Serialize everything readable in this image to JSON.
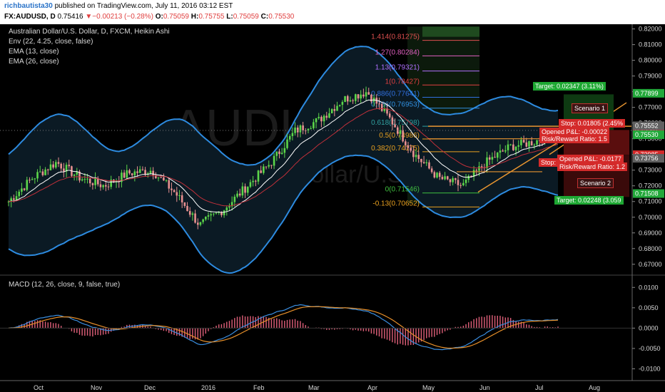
{
  "header": {
    "author": "richbautista30",
    "published": "published on TradingView.com, July 11, 2016 03:12 EST",
    "symbol": "FX:AUDUSD, D",
    "last": "0.75416",
    "change": "▼−0.00213 (−0.28%)",
    "open_label": "O:",
    "open": "0.75059",
    "high_label": "H:",
    "high": "0.75755",
    "low_label": "L:",
    "low": "0.75059",
    "close_label": "C:",
    "close": "0.75530"
  },
  "legend": {
    "title": "Australian Dollar/U.S. Dollar, D, FXCM, Heikin Ashi",
    "env": "Env (22, 4.25, close, false)",
    "ema13": "EMA (13, close)",
    "ema26": "EMA (26, close)"
  },
  "macd_legend": "MACD (12, 26, close, 9, false, true)",
  "watermark": {
    "symbol": "AUDUSD",
    "name": "Australian Dollar/U.S. Dollar"
  },
  "price_axis": [
    "0.82000",
    "0.81000",
    "0.80000",
    "0.79000",
    "0.78000",
    "0.77000",
    "0.76000",
    "0.75000",
    "0.74000",
    "0.73000",
    "0.72000",
    "0.71000",
    "0.70000",
    "0.69000",
    "0.68000",
    "0.67000"
  ],
  "price_tags": [
    {
      "label": "0.77899",
      "color": "#22a83a"
    },
    {
      "label": "0.75561",
      "color": "#d42a2a"
    },
    {
      "label": "0.75552",
      "color": "#606060"
    },
    {
      "label": "0.75530",
      "color": "#22a83a"
    },
    {
      "label": "0.73985",
      "color": "#d42a2a"
    },
    {
      "label": "0.73756",
      "color": "#606060"
    },
    {
      "label": "0.71508",
      "color": "#22a83a"
    }
  ],
  "macd_axis": [
    "0.0100",
    "0.0050",
    "0.0000",
    "-0.0050",
    "-0.0100"
  ],
  "time_axis": [
    "Oct",
    "Nov",
    "Dec",
    "2016",
    "Feb",
    "Mar",
    "Apr",
    "May",
    "Jun",
    "Jul",
    "Aug"
  ],
  "fib_levels": [
    {
      "label": "1.414(0.81275)",
      "color": "#e05050"
    },
    {
      "label": "1.27(0.80284)",
      "color": "#e060c0"
    },
    {
      "label": "1.13(0.79321)",
      "color": "#b070ff"
    },
    {
      "label": "1(0.78427)",
      "color": "#e04040"
    },
    {
      "label": "0.886(0.77641)",
      "color": "#3070e0"
    },
    {
      "label": "0.786(0.76953)",
      "color": "#3090e0"
    },
    {
      "label": "0.618(0.75798)",
      "color": "#30a0a0"
    },
    {
      "label": "0.5(0.74986)",
      "color": "#e8a020"
    },
    {
      "label": "0.382(0.74175)",
      "color": "#e8a020"
    },
    {
      "label": "0(0.71546)",
      "color": "#40c040"
    },
    {
      "label": "-0.13(0.70652)",
      "color": "#e8a020"
    }
  ],
  "trade_labels": {
    "target1": "Target: 0.02347 (3.11%)",
    "stop1": "Stop: 0.01805 (2.45%",
    "opened1": "Opened P&L: -0.00022",
    "rr1": "Risk/Reward Ratio: 1.5",
    "stop2": "Stop:",
    "opened2": "Opened P&L: -0.0177",
    "rr2": "Risk/Reward Ratio: 1.2",
    "target2": "Target: 0.02248 (3.059",
    "scenario1": "Scenario 1",
    "scenario2": "Scenario 2"
  },
  "chart_data": {
    "type": "candlestick",
    "instrument": "AUDUSD",
    "timeframe": "D",
    "ylim": [
      0.664,
      0.823
    ],
    "months": [
      "Oct",
      "Nov",
      "Dec",
      "2016",
      "Feb",
      "Mar",
      "Apr",
      "May",
      "Jun",
      "Jul",
      "Aug"
    ],
    "approx_close_path": [
      0.71,
      0.725,
      0.735,
      0.725,
      0.72,
      0.728,
      0.73,
      0.715,
      0.695,
      0.705,
      0.72,
      0.735,
      0.755,
      0.762,
      0.775,
      0.78,
      0.762,
      0.74,
      0.725,
      0.72,
      0.735,
      0.745,
      0.748,
      0.755
    ]
  }
}
